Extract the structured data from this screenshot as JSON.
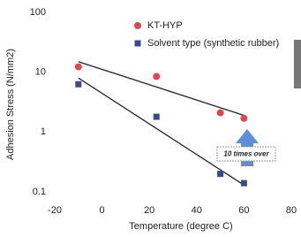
{
  "chart_data": {
    "type": "scatter",
    "x_label": "Temperature  (degree C)",
    "y_label": "Adhesion Stress (N/mm2)",
    "x": [
      -10,
      23,
      50,
      60
    ],
    "series": [
      {
        "name": "KT-HYP",
        "color": "#e0474c",
        "marker": "circle",
        "values": [
          12.3,
          8.5,
          2.1,
          1.7
        ],
        "trend_x": [
          -10,
          60
        ],
        "trend_values": [
          15,
          1.9
        ]
      },
      {
        "name": "Solvent type (synthetic rubber)",
        "color": "#3c4a8c",
        "marker": "square",
        "values": [
          6.3,
          1.8,
          0.2,
          0.14
        ],
        "trend_x": [
          -10,
          60
        ],
        "trend_values": [
          8,
          0.13
        ]
      }
    ],
    "xlim": [
      -20,
      80
    ],
    "xticks": [
      -20,
      0,
      20,
      40,
      60,
      80
    ],
    "ylim": [
      0.1,
      100
    ],
    "yticks": [
      0.1,
      1,
      10,
      100
    ],
    "log_y": true,
    "grid": false,
    "annotation": "10 times over"
  }
}
